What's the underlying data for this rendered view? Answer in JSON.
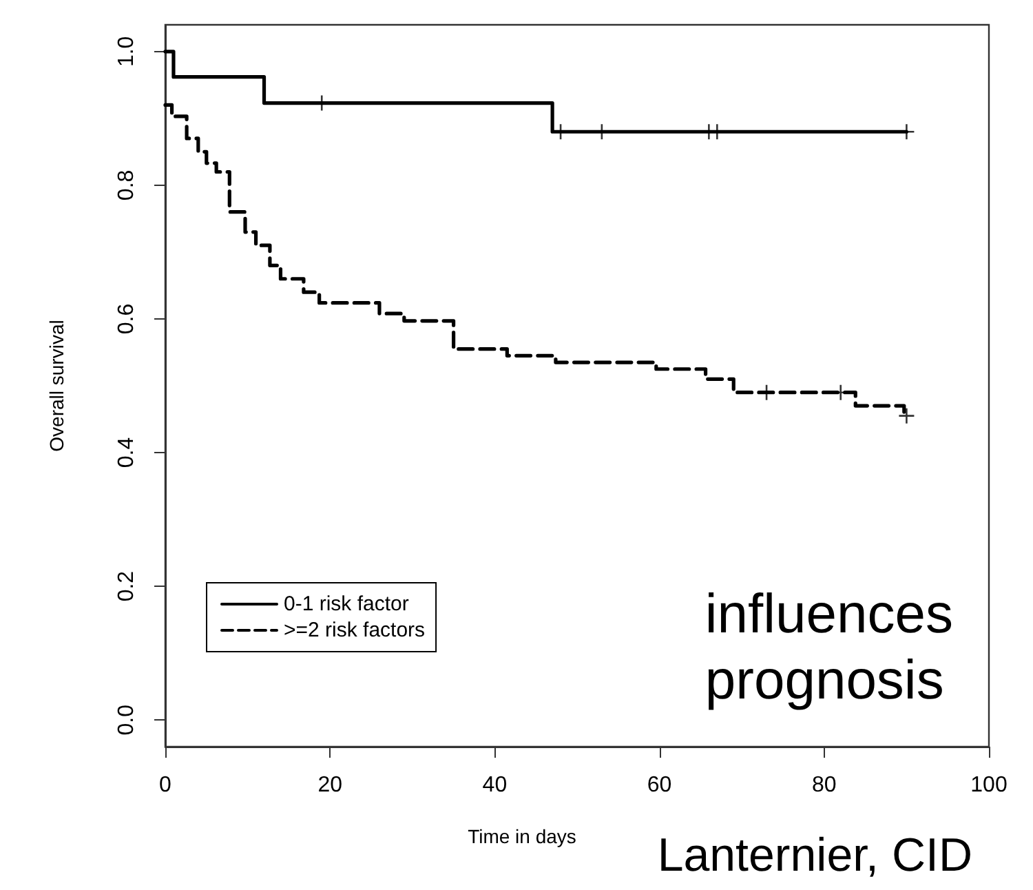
{
  "chart_data": {
    "type": "step",
    "xlabel": "Time in days",
    "ylabel": "Overall survival",
    "xlim": [
      0,
      100
    ],
    "xticks": [
      0,
      20,
      40,
      60,
      80,
      100
    ],
    "ylim": [
      -0.04,
      1.04
    ],
    "yticks": [
      {
        "value": 0,
        "label": "0.0"
      },
      0.2,
      0.4,
      0.6,
      0.8,
      {
        "value": 1,
        "label": "1.0"
      }
    ],
    "grid": false,
    "legend": "bottom left",
    "marker": "none",
    "series": [
      {
        "name": "0-1 risk factor",
        "color": "#000000",
        "line_style": "solid",
        "x": [
          0,
          1,
          12,
          47,
          90
        ],
        "values": [
          1,
          0.962,
          0.923,
          0.88,
          0.88
        ]
      },
      {
        "name": ">=2 risk factors",
        "color": "#000000",
        "line_style": "dashed",
        "x": [
          0,
          0.8,
          2.6,
          4,
          5,
          6.2,
          7.8,
          9.7,
          11,
          12.7,
          14,
          16.8,
          18.7,
          26,
          29,
          35,
          41.5,
          47.4,
          59.6,
          65.6,
          69,
          83.8,
          89.7,
          90
        ],
        "values": [
          0.92,
          0.903,
          0.87,
          0.85,
          0.833,
          0.82,
          0.76,
          0.73,
          0.71,
          0.68,
          0.66,
          0.64,
          0.624,
          0.608,
          0.597,
          0.555,
          0.545,
          0.535,
          0.525,
          0.51,
          0.49,
          0.47,
          0.455,
          0.455
        ]
      },
      {
        "type": "scatter",
        "marker": "cross",
        "color": "#000000",
        "x": [
          19,
          48,
          53,
          66,
          67,
          90,
          73,
          82,
          90
        ],
        "values": [
          0.923,
          0.88,
          0.88,
          0.88,
          0.88,
          0.88,
          0.49,
          0.49,
          0.455
        ]
      }
    ],
    "annotations": [
      "influences\nprognosis",
      "Lanternier, CID"
    ]
  }
}
